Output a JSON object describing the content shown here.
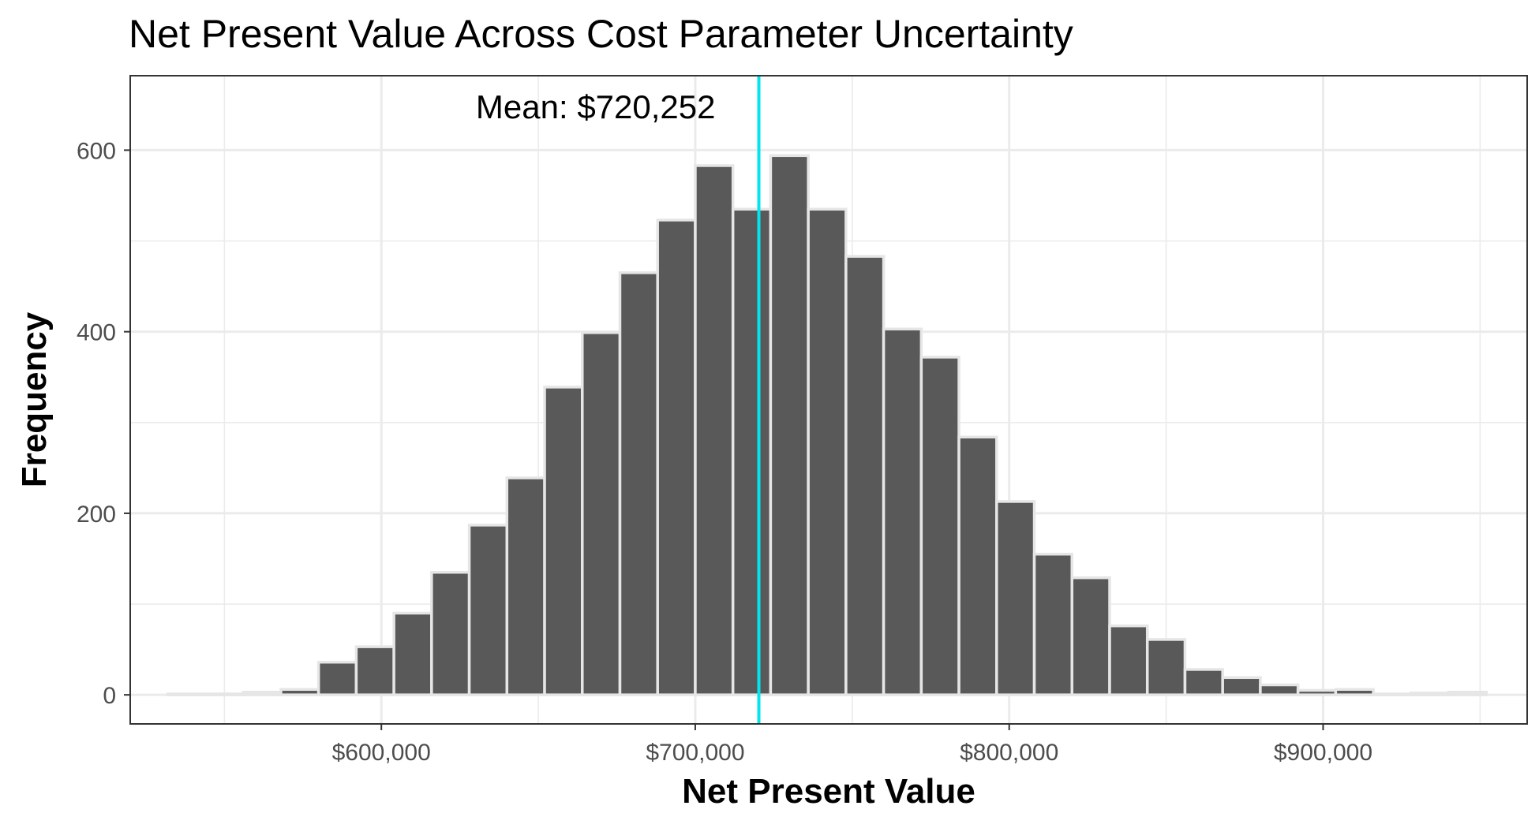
{
  "chart_data": {
    "type": "bar",
    "title": "Net Present Value Across Cost Parameter Uncertainty",
    "xlabel": "Net Present Value",
    "ylabel": "Frequency",
    "x_tick_labels": [
      "$600,000",
      "$700,000",
      "$800,000",
      "$900,000"
    ],
    "x_ticks": [
      600000,
      700000,
      800000,
      900000
    ],
    "y_ticks": [
      0,
      200,
      400,
      600
    ],
    "y_tick_labels": [
      "0",
      "200",
      "400",
      "600"
    ],
    "xlim": [
      520000,
      965000
    ],
    "ylim": [
      -32,
      682
    ],
    "bin_width": 12000,
    "bin_centers": [
      538000,
      550000,
      562000,
      574000,
      586000,
      598000,
      610000,
      622000,
      634000,
      646000,
      658000,
      670000,
      682000,
      694000,
      706000,
      718000,
      730000,
      742000,
      754000,
      766000,
      778000,
      790000,
      802000,
      814000,
      826000,
      838000,
      850000,
      862000,
      874000,
      886000,
      898000,
      910000,
      922000,
      934000,
      946000
    ],
    "values": [
      1,
      1,
      3,
      6,
      36,
      53,
      90,
      135,
      187,
      239,
      339,
      399,
      465,
      523,
      583,
      535,
      594,
      535,
      483,
      403,
      372,
      284,
      213,
      155,
      129,
      76,
      61,
      28,
      19,
      11,
      5,
      6,
      1,
      2,
      3
    ],
    "mean_value": 720252,
    "mean_label": "Mean: $720,252",
    "grid": true,
    "colors": {
      "bar_fill": "#595959",
      "bar_outline": "#e6e6e6",
      "mean_line": "#00e5ee",
      "grid": "#ebebeb",
      "panel_border": "#333333"
    }
  }
}
